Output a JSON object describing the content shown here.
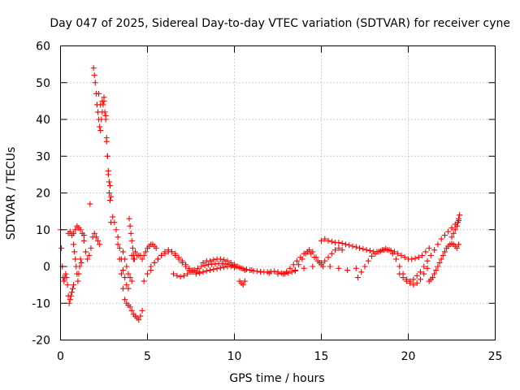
{
  "chart_data": {
    "type": "scatter",
    "title": "Day 047 of 2025, Sidereal Day-to-day VTEC variation (SDTVAR) for receiver cyne",
    "xlabel": "GPS time / hours",
    "ylabel": "SDTVAR / TECUs",
    "xlim": [
      0,
      25
    ],
    "ylim": [
      -20,
      60
    ],
    "xticks": [
      0,
      5,
      10,
      15,
      20,
      25
    ],
    "yticks": [
      -20,
      -10,
      0,
      10,
      20,
      30,
      40,
      50,
      60
    ],
    "xtick_labels": [
      "0",
      "5",
      "10",
      "15",
      "20",
      "25"
    ],
    "ytick_labels": [
      "-20",
      "-10",
      "0",
      "10",
      "20",
      "30",
      "40",
      "50",
      "60"
    ],
    "grid": true,
    "marker": "plus",
    "color": "#ff0000",
    "series": [
      {
        "name": "s1",
        "x": [
          0.0,
          0.05,
          0.1,
          0.15,
          0.2,
          0.25,
          0.3,
          0.35
        ],
        "y": [
          10.0,
          5.0,
          0.0,
          -3.0,
          -4.0,
          -3.0,
          -2.0,
          -3.0
        ]
      },
      {
        "name": "s2",
        "x": [
          0.4,
          0.45,
          0.5,
          0.55,
          0.6,
          0.65,
          0.7,
          0.75
        ],
        "y": [
          -5.0,
          -8.0,
          -10.0,
          -9.0,
          -8.0,
          -7.0,
          -6.0,
          -5.0
        ]
      },
      {
        "name": "s3",
        "x": [
          0.45,
          0.55,
          0.65,
          0.75,
          0.85,
          0.95,
          1.05,
          1.15,
          1.25,
          1.35
        ],
        "y": [
          9.0,
          9.5,
          8.5,
          9.0,
          10.0,
          11.0,
          10.5,
          10.0,
          9.0,
          8.5
        ]
      },
      {
        "name": "s4",
        "x": [
          0.75,
          0.8,
          0.85,
          0.9,
          0.95,
          1.0,
          1.05,
          1.1,
          1.15,
          1.2
        ],
        "y": [
          6.0,
          4.0,
          2.0,
          0.0,
          -2.0,
          -4.0,
          -2.0,
          0.0,
          2.0,
          1.0
        ]
      },
      {
        "name": "s5",
        "x": [
          1.35,
          1.45,
          1.55,
          1.65,
          1.75,
          1.85,
          1.95,
          2.05,
          2.15,
          2.25
        ],
        "y": [
          7.0,
          4.0,
          2.0,
          3.0,
          5.0,
          8.0,
          9.0,
          8.0,
          7.0,
          6.0
        ]
      },
      {
        "name": "s6",
        "x": [
          1.7
        ],
        "y": [
          17.0
        ]
      },
      {
        "name": "s7",
        "x": [
          1.9,
          1.95,
          2.0,
          2.05,
          2.1,
          2.15,
          2.2,
          2.25,
          2.3,
          2.35,
          2.4,
          2.45,
          2.5,
          2.55,
          2.6,
          2.65,
          2.7,
          2.75,
          2.8,
          2.85,
          2.9
        ],
        "y": [
          54.0,
          52.0,
          50.0,
          47.0,
          44.0,
          42.0,
          40.0,
          38.0,
          37.0,
          40.0,
          45.0,
          44.0,
          46.0,
          42.0,
          40.0,
          35.0,
          30.0,
          25.0,
          20.0,
          18.0,
          19.0
        ]
      },
      {
        "name": "s8",
        "x": [
          2.2,
          2.3,
          2.4,
          2.5,
          2.6,
          2.65,
          2.7,
          2.75,
          2.8,
          2.85
        ],
        "y": [
          47.0,
          44.0,
          42.0,
          45.0,
          41.0,
          34.0,
          30.0,
          26.0,
          23.0,
          22.0
        ]
      },
      {
        "name": "s9",
        "x": [
          2.9,
          3.0,
          3.1,
          3.2,
          3.3,
          3.4,
          3.5,
          3.6,
          3.7,
          3.8,
          3.9,
          4.0,
          4.1,
          4.2,
          4.3,
          4.4,
          4.5,
          4.6,
          4.7
        ],
        "y": [
          12.0,
          13.5,
          12.0,
          10.0,
          6.0,
          2.0,
          -2.0,
          -6.0,
          -9.0,
          -10.0,
          -10.5,
          -11.0,
          -12.0,
          -13.0,
          -13.5,
          -14.0,
          -14.5,
          -13.5,
          -12.0
        ]
      },
      {
        "name": "s10",
        "x": [
          3.3,
          3.4,
          3.5,
          3.6,
          3.7,
          3.8,
          3.9
        ],
        "y": [
          8.0,
          5.0,
          2.0,
          -1.0,
          -3.0,
          -5.0,
          -6.0
        ]
      },
      {
        "name": "s11",
        "x": [
          3.6,
          3.7,
          3.8,
          3.9,
          4.0,
          4.1
        ],
        "y": [
          4.0,
          2.0,
          0.0,
          -2.0,
          -3.0,
          -4.0
        ]
      },
      {
        "name": "s12",
        "x": [
          3.95,
          4.0,
          4.05,
          4.1,
          4.15,
          4.2,
          4.25
        ],
        "y": [
          13.0,
          11.0,
          9.0,
          7.0,
          5.0,
          3.0,
          2.0
        ]
      },
      {
        "name": "s13",
        "x": [
          4.1,
          4.2,
          4.3,
          4.4,
          4.5,
          4.6,
          4.7,
          4.8,
          4.9,
          5.0,
          5.1,
          5.2,
          5.3,
          5.4,
          5.5
        ],
        "y": [
          3.0,
          2.0,
          4.0,
          3.0,
          3.0,
          3.0,
          2.0,
          3.0,
          4.0,
          5.0,
          5.5,
          6.0,
          6.0,
          5.5,
          5.0
        ]
      },
      {
        "name": "s14",
        "x": [
          4.8,
          5.0,
          5.2,
          5.4,
          5.6,
          5.8,
          6.0,
          6.2,
          6.4,
          6.6,
          6.8,
          7.0,
          7.2,
          7.4,
          7.6,
          7.8,
          8.0
        ],
        "y": [
          -4.0,
          -2.0,
          -1.0,
          1.0,
          2.0,
          3.0,
          3.5,
          4.0,
          4.0,
          3.5,
          2.5,
          1.5,
          0.5,
          -0.5,
          -1.0,
          -1.5,
          -1.5
        ]
      },
      {
        "name": "s15",
        "x": [
          5.2,
          5.4,
          5.6,
          5.8,
          6.0,
          6.2,
          6.4,
          6.6,
          6.8,
          7.0,
          7.2,
          7.4,
          7.6,
          7.8,
          8.0,
          8.2,
          8.4,
          8.6,
          8.8,
          9.0,
          9.2,
          9.4,
          9.6,
          9.8,
          10.0
        ],
        "y": [
          0.0,
          1.0,
          2.0,
          3.0,
          4.0,
          4.5,
          4.0,
          3.0,
          2.0,
          1.0,
          0.0,
          -1.0,
          -1.5,
          -2.0,
          -1.8,
          -1.5,
          -1.2,
          -1.0,
          -0.8,
          -0.6,
          -0.4,
          -0.2,
          0.0,
          0.0,
          -0.2
        ]
      },
      {
        "name": "s16",
        "x": [
          6.5,
          6.7,
          6.9,
          7.1,
          7.3,
          7.5,
          7.7,
          7.9,
          8.1,
          8.3,
          8.5,
          8.7,
          8.9,
          9.1,
          9.3,
          9.5,
          9.7,
          9.9,
          10.1,
          10.3,
          10.5,
          10.7,
          10.9,
          11.1,
          11.3,
          11.5,
          11.7,
          11.9,
          12.1,
          12.3,
          12.5,
          12.7,
          12.9,
          13.1,
          13.3,
          13.5
        ],
        "y": [
          -2.0,
          -2.5,
          -2.8,
          -2.5,
          -2.0,
          -1.5,
          -1.0,
          -0.5,
          0.0,
          0.3,
          0.5,
          0.6,
          0.7,
          0.8,
          0.8,
          0.7,
          0.5,
          0.3,
          0.0,
          -0.3,
          -0.6,
          -0.8,
          -1.0,
          -1.2,
          -1.3,
          -1.4,
          -1.5,
          -1.5,
          -1.4,
          -1.3,
          -1.5,
          -1.8,
          -2.0,
          -1.8,
          -1.5,
          -1.2
        ]
      },
      {
        "name": "s17",
        "x": [
          8.2,
          8.4,
          8.6,
          8.8,
          9.0,
          9.2,
          9.4,
          9.6,
          9.8,
          10.0,
          10.2,
          10.4,
          10.6
        ],
        "y": [
          1.0,
          1.5,
          1.5,
          1.8,
          2.0,
          2.0,
          1.8,
          1.5,
          1.0,
          0.5,
          0.0,
          -0.5,
          -1.0
        ]
      },
      {
        "name": "s18",
        "x": [
          10.3,
          10.4,
          10.5,
          10.6
        ],
        "y": [
          -4.0,
          -4.5,
          -5.0,
          -4.0
        ]
      },
      {
        "name": "s19",
        "x": [
          11.0,
          11.5,
          12.0,
          12.5,
          13.0,
          13.5,
          14.0,
          14.5,
          15.0,
          15.5,
          16.0,
          16.5,
          17.0
        ],
        "y": [
          -1.0,
          -1.5,
          -1.8,
          -2.0,
          -1.5,
          -1.0,
          -0.5,
          0.0,
          0.5,
          0.0,
          -0.5,
          -1.0,
          -0.5
        ]
      },
      {
        "name": "s20",
        "x": [
          12.8,
          13.0,
          13.2,
          13.4,
          13.6,
          13.8,
          14.0,
          14.2,
          14.4,
          14.6,
          14.8,
          15.0,
          15.2,
          15.4,
          15.6,
          15.8,
          16.0,
          16.2
        ],
        "y": [
          -2.0,
          -1.5,
          -0.5,
          0.5,
          1.5,
          2.5,
          3.5,
          4.0,
          3.5,
          2.5,
          1.5,
          1.0,
          1.5,
          2.5,
          3.5,
          4.5,
          5.0,
          4.5
        ]
      },
      {
        "name": "s21",
        "x": [
          13.5,
          13.7,
          13.9,
          14.1,
          14.3,
          14.5,
          14.7,
          14.9,
          15.1
        ],
        "y": [
          -1.0,
          0.5,
          2.0,
          3.5,
          4.5,
          4.0,
          2.5,
          1.0,
          0.0
        ]
      },
      {
        "name": "s22",
        "x": [
          15.0,
          15.2,
          15.4,
          15.6,
          15.8,
          16.0,
          16.2,
          16.4,
          16.6,
          16.8,
          17.0,
          17.2,
          17.4,
          17.6,
          17.8,
          18.0,
          18.2,
          18.4,
          18.6,
          18.8,
          19.0,
          19.2,
          19.4,
          19.6,
          19.8,
          20.0,
          20.2,
          20.4,
          20.6,
          20.8,
          21.0,
          21.2
        ],
        "y": [
          7.0,
          7.5,
          7.0,
          6.8,
          6.5,
          6.5,
          6.3,
          6.0,
          5.8,
          5.5,
          5.3,
          5.0,
          4.8,
          4.5,
          4.3,
          4.0,
          4.0,
          4.2,
          4.5,
          4.5,
          4.3,
          4.0,
          3.5,
          3.0,
          2.5,
          2.0,
          2.0,
          2.2,
          2.5,
          3.0,
          4.0,
          5.0
        ]
      },
      {
        "name": "s23",
        "x": [
          17.1,
          17.3,
          17.5,
          17.7,
          17.9,
          18.1,
          18.3,
          18.5,
          18.7,
          18.9,
          19.1,
          19.3,
          19.5,
          19.7,
          19.9,
          20.1,
          20.3,
          20.5,
          20.7,
          20.9,
          21.1
        ],
        "y": [
          -3.0,
          -1.5,
          0.0,
          1.5,
          2.8,
          3.5,
          4.0,
          4.5,
          4.8,
          4.5,
          3.5,
          2.0,
          0.0,
          -2.0,
          -3.5,
          -4.5,
          -5.0,
          -4.5,
          -3.5,
          -2.0,
          -0.5
        ]
      },
      {
        "name": "s24",
        "x": [
          19.5,
          19.7,
          19.9,
          20.1,
          20.3,
          20.5,
          20.7,
          20.9,
          21.1,
          21.3,
          21.5,
          21.7,
          21.9,
          22.1,
          22.3,
          22.5,
          22.7,
          22.9
        ],
        "y": [
          -2.0,
          -3.0,
          -4.0,
          -4.0,
          -3.5,
          -2.5,
          -1.5,
          0.0,
          1.5,
          3.0,
          4.5,
          6.0,
          7.5,
          8.5,
          9.5,
          10.5,
          11.5,
          12.5
        ]
      },
      {
        "name": "s25",
        "x": [
          21.2,
          21.3,
          21.4,
          21.5,
          21.6,
          21.7,
          21.8,
          21.9,
          22.0,
          22.1,
          22.2,
          22.3,
          22.4,
          22.5,
          22.6,
          22.7,
          22.8,
          22.9
        ],
        "y": [
          -4.0,
          -3.5,
          -3.0,
          -2.0,
          -1.0,
          0.0,
          1.0,
          2.0,
          3.0,
          4.0,
          5.0,
          5.5,
          6.0,
          6.2,
          6.0,
          5.5,
          5.0,
          6.0
        ]
      },
      {
        "name": "s26",
        "x": [
          22.5,
          22.6,
          22.7,
          22.8,
          22.85,
          22.9,
          22.95
        ],
        "y": [
          8.0,
          9.0,
          10.0,
          11.0,
          12.0,
          13.0,
          14.0
        ]
      }
    ]
  }
}
